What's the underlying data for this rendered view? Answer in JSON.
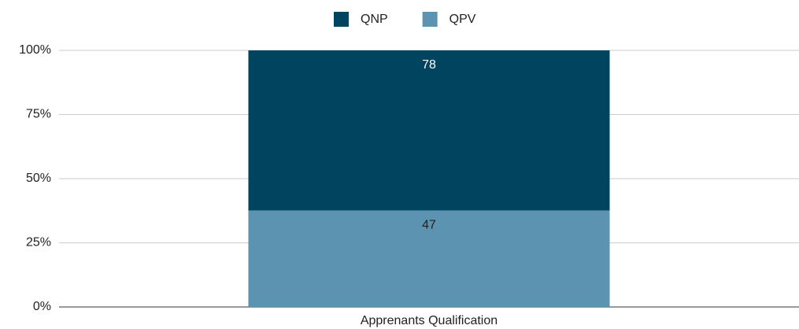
{
  "chart_data": {
    "type": "bar",
    "stacking": "percent",
    "categories": [
      "Apprenants Qualification"
    ],
    "series": [
      {
        "name": "QNP",
        "color": "#01445f",
        "values": [
          78
        ]
      },
      {
        "name": "QPV",
        "color": "#5b93b0",
        "values": [
          47
        ]
      }
    ],
    "ylim": [
      0,
      100
    ],
    "yticks": [
      {
        "value": 0,
        "label": "0%"
      },
      {
        "value": 25,
        "label": "25%"
      },
      {
        "value": 50,
        "label": "50%"
      },
      {
        "value": 75,
        "label": "75%"
      },
      {
        "value": 100,
        "label": "100%"
      }
    ],
    "grid": true,
    "legend": "top"
  }
}
